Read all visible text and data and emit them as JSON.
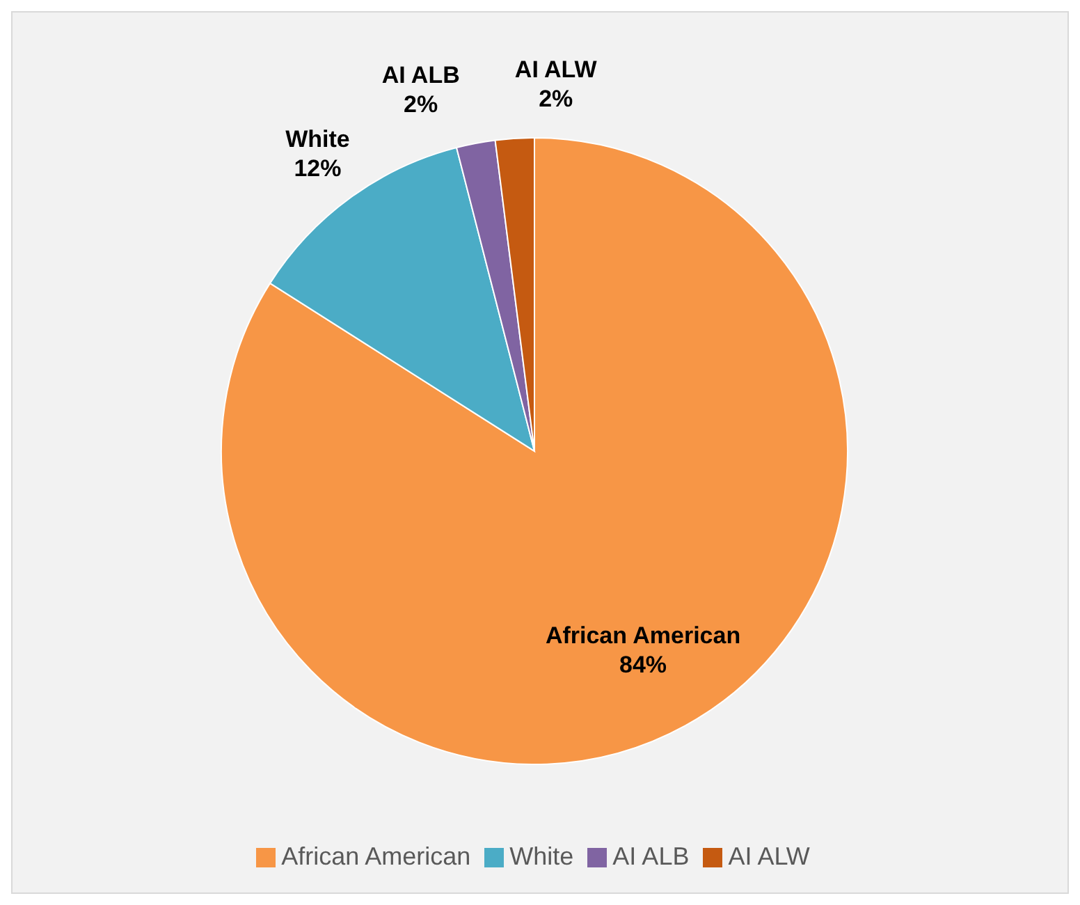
{
  "chart_data": {
    "type": "pie",
    "categories": [
      "African American",
      "White",
      "AI ALB",
      "AI ALW"
    ],
    "values": [
      84,
      12,
      2,
      2
    ],
    "colors": [
      "#f79646",
      "#4bacc6",
      "#8064a2",
      "#c55a11"
    ],
    "value_labels": [
      "84%",
      "12%",
      "2%",
      "2%"
    ],
    "legend": "bottom"
  }
}
